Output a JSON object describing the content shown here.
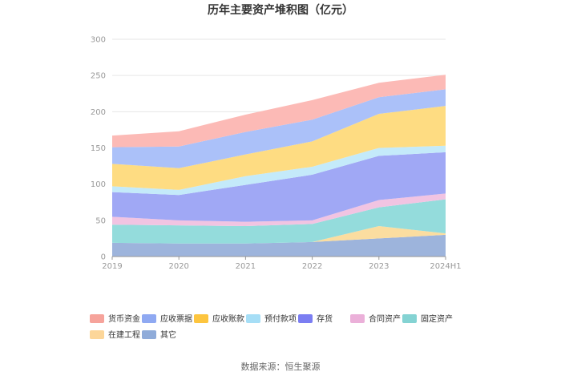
{
  "chart_data": {
    "type": "area",
    "stacked": true,
    "title": "历年主要资产堆积图（亿元）",
    "categories": [
      "2019",
      "2020",
      "2021",
      "2022",
      "2023",
      "2024H1"
    ],
    "ylim": [
      0,
      300
    ],
    "yticks": [
      0,
      50,
      100,
      150,
      200,
      250,
      300
    ],
    "grid": true,
    "legend_position": "bottom",
    "series": [
      {
        "name": "其它",
        "color": "#9db4dc",
        "values": [
          19,
          18,
          18,
          20,
          25,
          30
        ]
      },
      {
        "name": "在建工程",
        "color": "#fbdda0",
        "values": [
          0,
          0,
          0,
          0,
          17,
          2
        ]
      },
      {
        "name": "固定资产",
        "color": "#94dcdc",
        "values": [
          25,
          25,
          24,
          25,
          26,
          47
        ]
      },
      {
        "name": "合同资产",
        "color": "#f1c4e2",
        "values": [
          11,
          7,
          6,
          5,
          10,
          8
        ]
      },
      {
        "name": "存货",
        "color": "#a0a8f5",
        "values": [
          34,
          35,
          51,
          63,
          61,
          57
        ]
      },
      {
        "name": "预付款项",
        "color": "#c4eafa",
        "values": [
          8,
          7,
          12,
          11,
          11,
          9
        ]
      },
      {
        "name": "应收账款",
        "color": "#fedc82",
        "values": [
          31,
          30,
          30,
          35,
          47,
          55
        ]
      },
      {
        "name": "应收票据",
        "color": "#abc1f9",
        "values": [
          23,
          30,
          31,
          30,
          23,
          23
        ]
      },
      {
        "name": "货币资金",
        "color": "#fcbab6",
        "values": [
          16,
          21,
          24,
          27,
          20,
          20
        ]
      }
    ],
    "legend": [
      {
        "name": "货币资金",
        "color": "#f6a39b"
      },
      {
        "name": "应收票据",
        "color": "#8fa9f2"
      },
      {
        "name": "应收账款",
        "color": "#fdc53f"
      },
      {
        "name": "预付款项",
        "color": "#a6def6"
      },
      {
        "name": "存货",
        "color": "#7b7ef2"
      },
      {
        "name": "合同资产",
        "color": "#ebb0d9"
      },
      {
        "name": "固定资产",
        "color": "#84d3d3"
      },
      {
        "name": "在建工程",
        "color": "#fcd699"
      },
      {
        "name": "其它",
        "color": "#8fabd9"
      }
    ],
    "source": "数据来源：恒生聚源"
  }
}
